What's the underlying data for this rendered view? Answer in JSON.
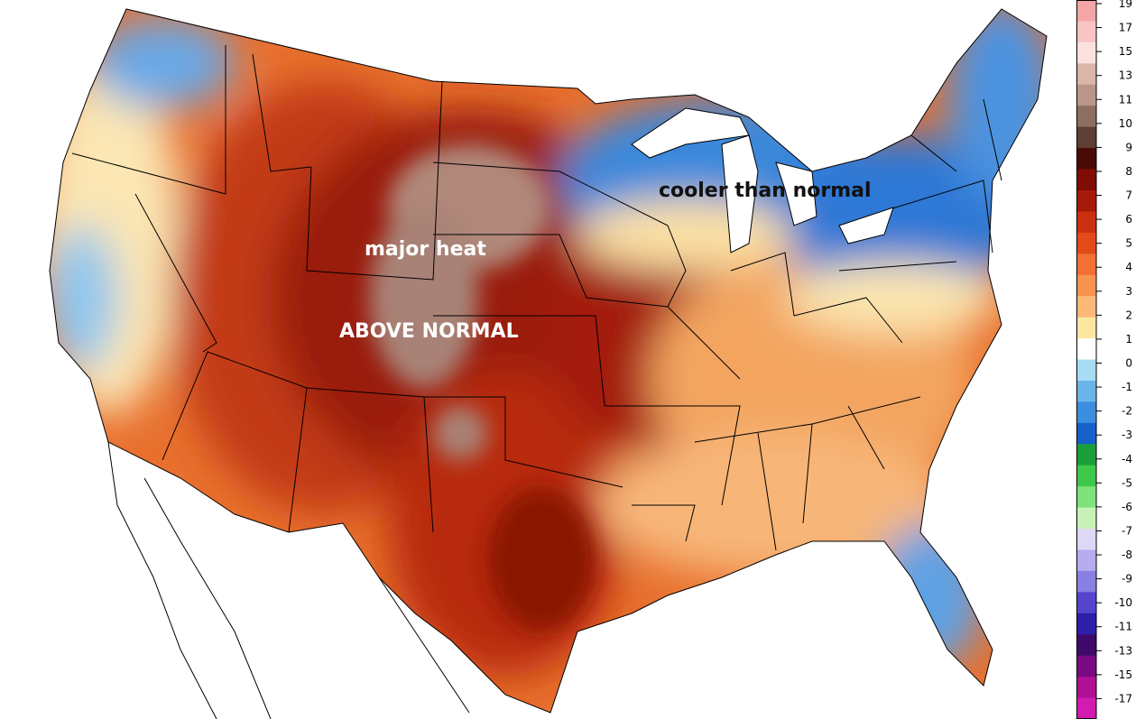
{
  "annotations": {
    "major_heat": "major heat",
    "above_normal": "ABOVE NORMAL",
    "cooler": "cooler than normal"
  },
  "legend": {
    "labels": [
      "19",
      "17",
      "15",
      "13",
      "11",
      "10",
      "9",
      "8",
      "7",
      "6",
      "5",
      "4",
      "3",
      "2",
      "1",
      "0",
      "-1",
      "-2",
      "-3",
      "-4",
      "-5",
      "-6",
      "-7",
      "-8",
      "-9",
      "-10",
      "-11",
      "-13",
      "-15",
      "-17"
    ],
    "colors": [
      "#f4a6a6",
      "#f8c4c4",
      "#fbe2df",
      "#d9b6a8",
      "#b8978a",
      "#8f6e62",
      "#5f3e33",
      "#4a0a06",
      "#800c06",
      "#a71a0a",
      "#c9300f",
      "#e34a1a",
      "#f36f33",
      "#f79450",
      "#fbb877",
      "#fde6a0",
      "#ffffff",
      "#a8dcf4",
      "#6bb4ea",
      "#3b8fdd",
      "#1661c9",
      "#1aa03a",
      "#3ec84a",
      "#7fe27a",
      "#c6f2b8",
      "#dcd8f6",
      "#b5adee",
      "#8a7fe3",
      "#5645cc",
      "#2d1fa8",
      "#3e0a6b",
      "#7a0a82",
      "#b01095",
      "#d21bb1"
    ]
  }
}
